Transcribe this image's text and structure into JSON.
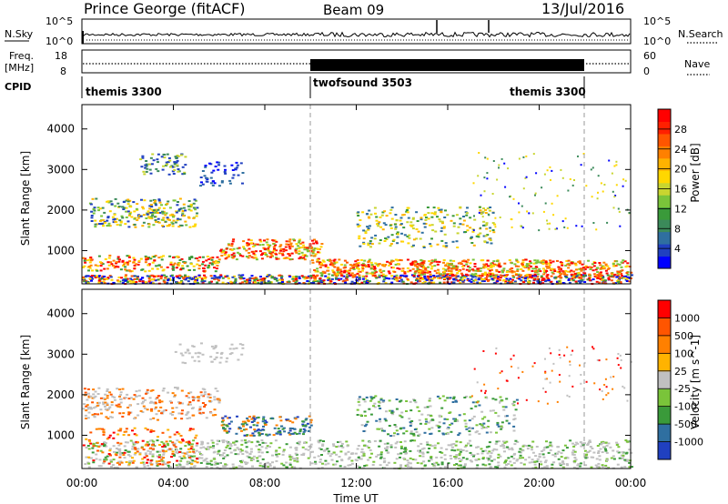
{
  "header": {
    "station": "Prince George (fitACF)",
    "beam": "Beam 09",
    "date": "13/Jul/2016"
  },
  "top_panel": {
    "left_label": "N.Sky",
    "left_ticks": [
      "10^5",
      "10^0"
    ],
    "right_ticks": [
      "10^5",
      "10^0"
    ],
    "right_label": "N.Search"
  },
  "freq_panel": {
    "left_label_1": "Freq.",
    "left_label_2": "[MHz]",
    "left_ticks": [
      "18",
      "8"
    ],
    "right_ticks": [
      "60",
      "0"
    ],
    "right_label": "Nave"
  },
  "cpid_panel": {
    "label": "CPID",
    "programs": [
      {
        "name": "themis 3300"
      },
      {
        "name": "twofsound 3503"
      },
      {
        "name": "themis 3300"
      }
    ]
  },
  "chart_data": [
    {
      "type": "heatmap",
      "ylabel": "Slant Range [km]",
      "yticks": [
        "4000",
        "3000",
        "2000",
        "1000"
      ],
      "ylim": [
        180,
        4600
      ],
      "colorbar": {
        "label": "Power [dB]",
        "ticks": [
          "28",
          "24",
          "20",
          "16",
          "12",
          "8",
          "4"
        ],
        "range": [
          0,
          30
        ],
        "colors": [
          "#0000ff",
          "#2040c0",
          "#2f6fa0",
          "#3b8a5a",
          "#3a9a3a",
          "#7ac43a",
          "#c8d530",
          "#ffd700",
          "#ffb300",
          "#ff8000",
          "#ff5500",
          "#ff2000",
          "#ff0000"
        ]
      }
    },
    {
      "type": "heatmap",
      "ylabel": "Slant Range [km]",
      "yticks": [
        "4000",
        "3000",
        "2000",
        "1000"
      ],
      "ylim": [
        180,
        4600
      ],
      "colorbar": {
        "label": "Velocity [m s^-1]",
        "ticks": [
          "1000",
          "500",
          "100",
          "25",
          "-25",
          "-100",
          "-500",
          "-1000"
        ],
        "colors": [
          "#2040c0",
          "#2f6fa0",
          "#3a9a3a",
          "#7ac43a",
          "#c0c0c0",
          "#ffb300",
          "#ff8000",
          "#ff5500",
          "#ff0000"
        ]
      }
    }
  ],
  "x_axis": {
    "label": "Time UT",
    "ticks": [
      "00:00",
      "04:00",
      "08:00",
      "12:00",
      "16:00",
      "20:00",
      "00:00"
    ],
    "range_hours": [
      0,
      24
    ]
  }
}
